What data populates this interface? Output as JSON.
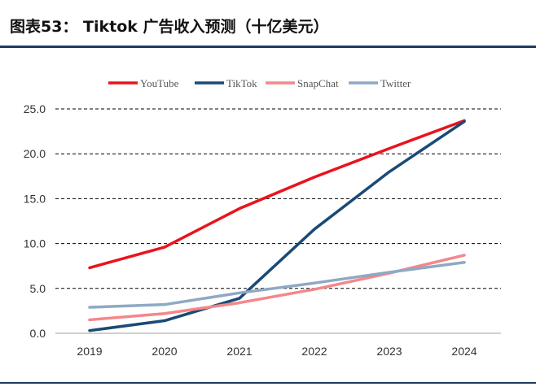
{
  "title": "图表53：  Tiktok 广告收入预测（十亿美元）",
  "chart_data": {
    "type": "line",
    "title": "Tiktok 广告收入预测（十亿美元）",
    "xlabel": "",
    "ylabel": "",
    "x": [
      "2019",
      "2020",
      "2021",
      "2022",
      "2023",
      "2024"
    ],
    "ylim": [
      0,
      25
    ],
    "yticks": [
      "0.0",
      "5.0",
      "10.0",
      "15.0",
      "20.0",
      "25.0"
    ],
    "grid": "horizontal-dashed",
    "legend_position": "top",
    "series": [
      {
        "name": "YouTube",
        "color": "#e8141c",
        "values": [
          7.3,
          9.6,
          13.9,
          17.4,
          20.6,
          23.7
        ]
      },
      {
        "name": "TikTok",
        "color": "#1a4a75",
        "values": [
          0.3,
          1.4,
          3.9,
          11.6,
          18.0,
          23.6
        ]
      },
      {
        "name": "SnapChat",
        "color": "#f4878a",
        "values": [
          1.5,
          2.2,
          3.4,
          4.9,
          6.7,
          8.7
        ]
      },
      {
        "name": "Twitter",
        "color": "#8ea9c4",
        "values": [
          2.9,
          3.2,
          4.5,
          5.6,
          6.8,
          7.9
        ]
      }
    ]
  }
}
